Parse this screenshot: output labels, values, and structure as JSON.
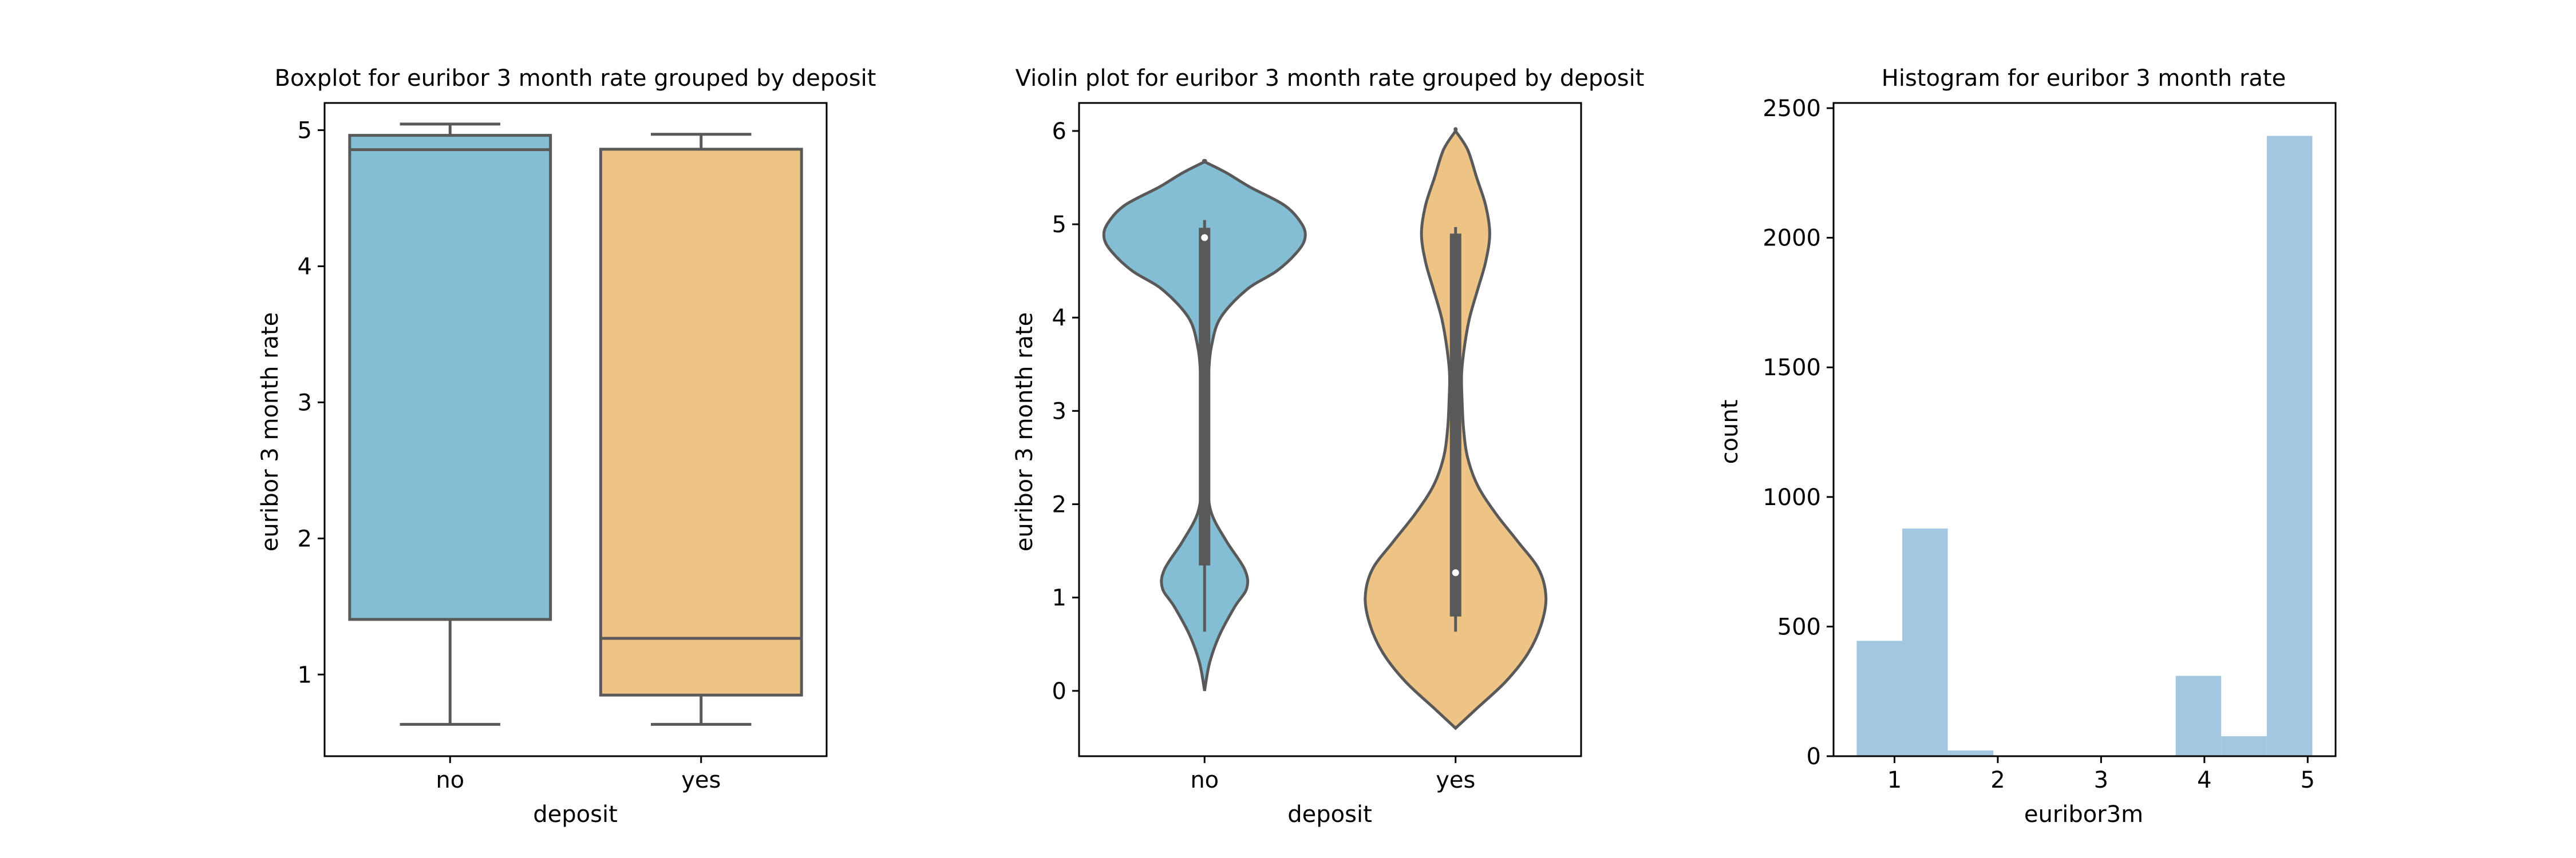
{
  "colors": {
    "no": "#84bed5",
    "yes": "#edc486",
    "hist": "#a3c7e0",
    "line": "#595959",
    "spine": "#000000"
  },
  "chart_data": [
    {
      "type": "box",
      "title": "Boxplot for euribor 3 month rate grouped by deposit",
      "xlabel": "deposit",
      "ylabel": "euribor 3 month rate",
      "categories": [
        "no",
        "yes"
      ],
      "ylim": [
        0.4,
        5.2
      ],
      "yticks": [
        1,
        2,
        3,
        4,
        5
      ],
      "boxes": [
        {
          "category": "no",
          "whisker_low": 0.634,
          "q1": 1.405,
          "median": 4.857,
          "q3": 4.962,
          "whisker_high": 5.045
        },
        {
          "category": "yes",
          "whisker_low": 0.634,
          "q1": 0.849,
          "median": 1.266,
          "q3": 4.86,
          "whisker_high": 4.97
        }
      ]
    },
    {
      "type": "violin",
      "title": "Violin plot for euribor 3 month rate grouped by deposit",
      "xlabel": "deposit",
      "ylabel": "euribor 3 month rate",
      "categories": [
        "no",
        "yes"
      ],
      "ylim": [
        -0.7,
        6.3
      ],
      "yticks": [
        0,
        1,
        2,
        3,
        4,
        5,
        6
      ],
      "violins": [
        {
          "category": "no",
          "density_y": [
            0.0,
            0.3,
            0.6,
            0.9,
            1.1,
            1.3,
            1.6,
            1.9,
            2.2,
            2.6,
            3.0,
            3.4,
            3.7,
            4.0,
            4.3,
            4.5,
            4.7,
            4.85,
            5.0,
            5.2,
            5.4,
            5.55,
            5.67
          ],
          "density_w": [
            0.0,
            0.05,
            0.15,
            0.3,
            0.42,
            0.4,
            0.22,
            0.07,
            0.03,
            0.02,
            0.025,
            0.04,
            0.07,
            0.16,
            0.42,
            0.72,
            0.92,
            1.0,
            0.97,
            0.8,
            0.45,
            0.22,
            0.0
          ],
          "whisker_low": 0.634,
          "q1": 1.344,
          "median": 4.857,
          "q3": 4.962,
          "whisker_high": 5.045
        },
        {
          "category": "yes",
          "density_y": [
            -0.4,
            -0.2,
            0.1,
            0.4,
            0.7,
            1.0,
            1.3,
            1.6,
            1.9,
            2.2,
            2.5,
            2.8,
            3.1,
            3.4,
            3.7,
            4.0,
            4.3,
            4.6,
            4.9,
            5.2,
            5.5,
            5.8,
            6.0
          ],
          "density_w": [
            0.0,
            0.2,
            0.5,
            0.72,
            0.85,
            0.9,
            0.83,
            0.62,
            0.4,
            0.22,
            0.12,
            0.08,
            0.065,
            0.06,
            0.09,
            0.14,
            0.22,
            0.3,
            0.34,
            0.3,
            0.21,
            0.12,
            0.0
          ],
          "whisker_low": 0.634,
          "q1": 0.797,
          "median": 1.266,
          "q3": 4.9,
          "whisker_high": 4.97
        }
      ]
    },
    {
      "type": "histogram",
      "title": "Histogram for euribor 3 month rate",
      "xlabel": "euribor3m",
      "ylabel": "count",
      "xlim": [
        0.41,
        5.27
      ],
      "ylim": [
        0,
        2520
      ],
      "xticks": [
        1,
        2,
        3,
        4,
        5
      ],
      "yticks": [
        0,
        500,
        1000,
        1500,
        2000,
        2500
      ],
      "bin_edges": [
        0.634,
        1.075,
        1.516,
        1.957,
        2.398,
        2.839,
        3.281,
        3.722,
        4.163,
        4.604,
        5.045
      ],
      "counts": [
        445,
        878,
        22,
        0,
        0,
        0,
        0,
        310,
        77,
        2393
      ]
    }
  ]
}
